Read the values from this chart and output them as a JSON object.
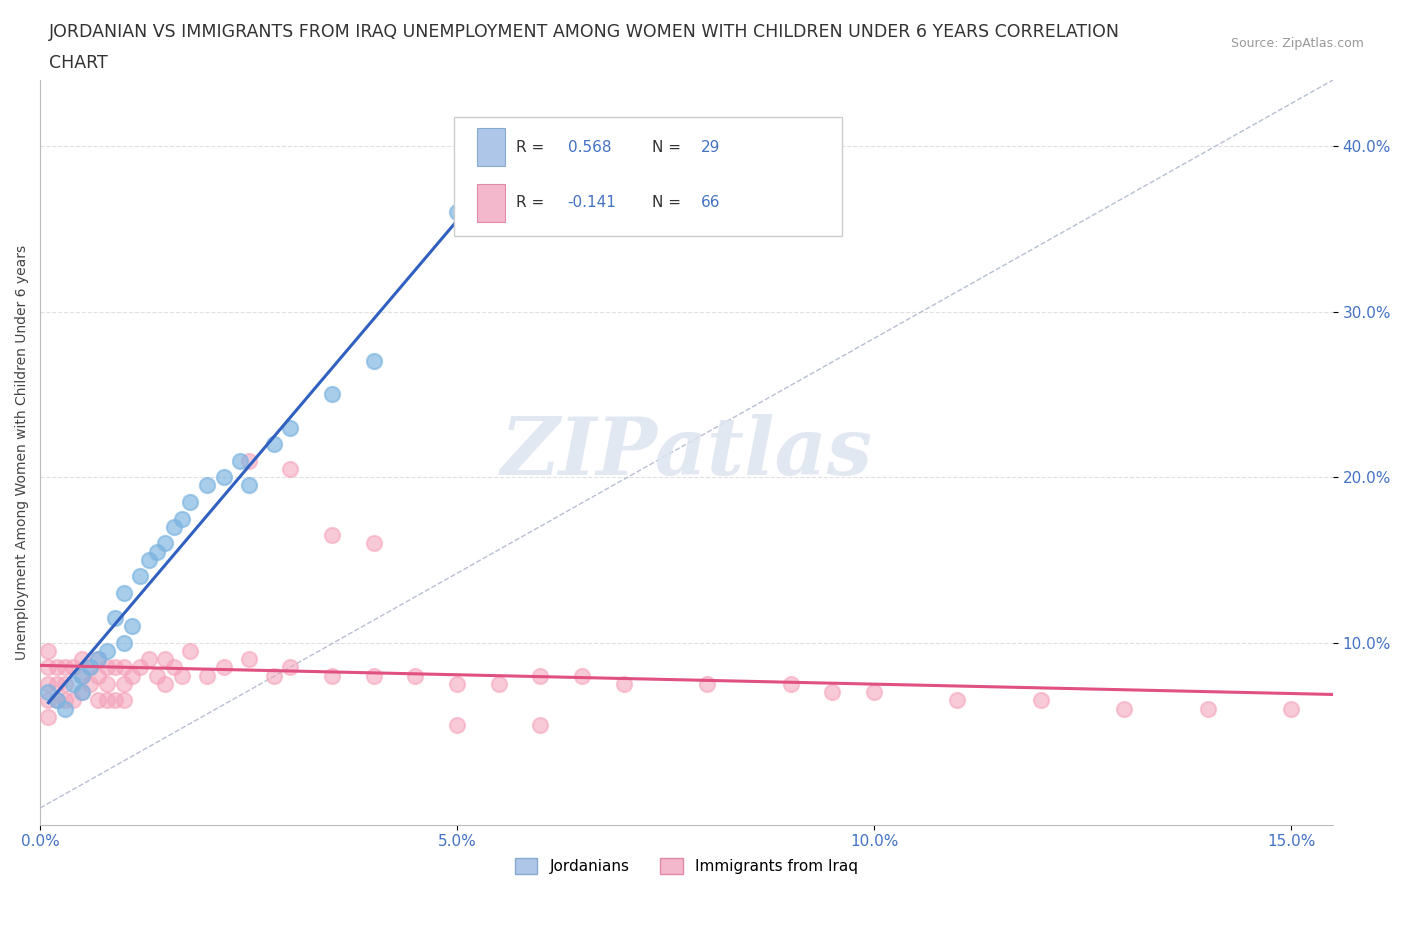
{
  "title_line1": "JORDANIAN VS IMMIGRANTS FROM IRAQ UNEMPLOYMENT AMONG WOMEN WITH CHILDREN UNDER 6 YEARS CORRELATION",
  "title_line2": "CHART",
  "source_text": "Source: ZipAtlas.com",
  "ylabel": "Unemployment Among Women with Children Under 6 years",
  "xlim": [
    0.0,
    0.155
  ],
  "ylim": [
    -0.01,
    0.44
  ],
  "xticks": [
    0.0,
    0.05,
    0.1,
    0.15
  ],
  "xticklabels": [
    "0.0%",
    "5.0%",
    "10.0%",
    "15.0%"
  ],
  "yticks": [
    0.1,
    0.2,
    0.3,
    0.4
  ],
  "yticklabels": [
    "10.0%",
    "20.0%",
    "30.0%",
    "40.0%"
  ],
  "R_blue": "0.568",
  "N_blue": "29",
  "R_pink": "-0.141",
  "N_pink": "66",
  "legend_labels": [
    "Jordanians",
    "Immigrants from Iraq"
  ],
  "blue_dot_color": "#7ab3e0",
  "pink_dot_color": "#f4a0b8",
  "trend_blue_color": "#3060c0",
  "trend_pink_color": "#e05080",
  "diag_line_color": "#b0b8cc",
  "watermark": "ZIPatlas",
  "jordanians_x": [
    0.001,
    0.002,
    0.003,
    0.004,
    0.005,
    0.005,
    0.006,
    0.007,
    0.008,
    0.009,
    0.01,
    0.01,
    0.011,
    0.012,
    0.013,
    0.014,
    0.015,
    0.016,
    0.017,
    0.018,
    0.02,
    0.022,
    0.024,
    0.025,
    0.028,
    0.03,
    0.035,
    0.04,
    0.05
  ],
  "jordanians_y": [
    0.07,
    0.065,
    0.06,
    0.075,
    0.07,
    0.08,
    0.085,
    0.09,
    0.095,
    0.115,
    0.1,
    0.13,
    0.11,
    0.14,
    0.15,
    0.155,
    0.16,
    0.17,
    0.175,
    0.185,
    0.195,
    0.2,
    0.21,
    0.195,
    0.22,
    0.23,
    0.25,
    0.27,
    0.36
  ],
  "iraq_x": [
    0.001,
    0.001,
    0.001,
    0.001,
    0.001,
    0.002,
    0.002,
    0.002,
    0.003,
    0.003,
    0.003,
    0.004,
    0.004,
    0.005,
    0.005,
    0.005,
    0.006,
    0.006,
    0.007,
    0.007,
    0.007,
    0.008,
    0.008,
    0.008,
    0.009,
    0.009,
    0.01,
    0.01,
    0.01,
    0.011,
    0.012,
    0.013,
    0.014,
    0.015,
    0.015,
    0.016,
    0.017,
    0.018,
    0.02,
    0.022,
    0.025,
    0.028,
    0.03,
    0.035,
    0.04,
    0.045,
    0.05,
    0.055,
    0.06,
    0.065,
    0.07,
    0.08,
    0.09,
    0.095,
    0.1,
    0.11,
    0.12,
    0.13,
    0.14,
    0.15,
    0.025,
    0.03,
    0.035,
    0.04,
    0.05,
    0.06
  ],
  "iraq_y": [
    0.095,
    0.085,
    0.075,
    0.065,
    0.055,
    0.085,
    0.075,
    0.065,
    0.085,
    0.075,
    0.065,
    0.085,
    0.065,
    0.09,
    0.08,
    0.07,
    0.085,
    0.075,
    0.09,
    0.08,
    0.065,
    0.085,
    0.075,
    0.065,
    0.085,
    0.065,
    0.085,
    0.075,
    0.065,
    0.08,
    0.085,
    0.09,
    0.08,
    0.09,
    0.075,
    0.085,
    0.08,
    0.095,
    0.08,
    0.085,
    0.09,
    0.08,
    0.085,
    0.08,
    0.08,
    0.08,
    0.075,
    0.075,
    0.08,
    0.08,
    0.075,
    0.075,
    0.075,
    0.07,
    0.07,
    0.065,
    0.065,
    0.06,
    0.06,
    0.06,
    0.21,
    0.205,
    0.165,
    0.16,
    0.05,
    0.05
  ],
  "bg_color": "#ffffff",
  "grid_color": "#e0e0e0",
  "tick_color": "#4472c4",
  "title_fontsize": 12.5,
  "axis_label_fontsize": 10,
  "tick_fontsize": 11,
  "legend_box_color": "#aec6e8",
  "legend_box_pink": "#f4b8cc"
}
